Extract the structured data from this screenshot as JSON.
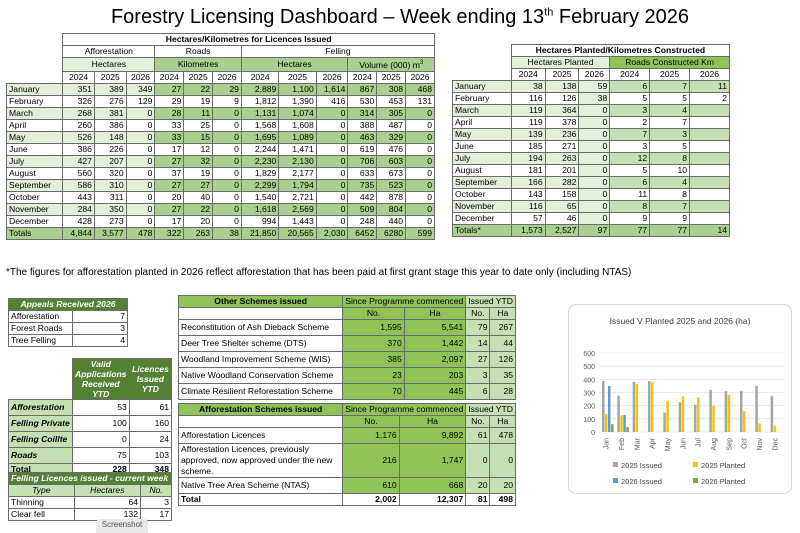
{
  "title": {
    "main": "Forestry Licensing Dashboard – Week ending 13",
    "sup": "th",
    "tail": " February 2026"
  },
  "licences": {
    "header": "Hectares/Kilometres for Licences Issued",
    "groups": {
      "afforestation": "Afforestation",
      "roads": "Roads",
      "felling": "Felling"
    },
    "units": {
      "aff": "Hectares",
      "roads": "Kilometres",
      "fell_ha": "Hectares",
      "fell_vol": "Volume (000) m",
      "fell_vol_sup": "3"
    },
    "years": [
      "2024",
      "2025",
      "2026"
    ],
    "rows": [
      {
        "month": "January",
        "v": [
          "351",
          "389",
          "349",
          "27",
          "22",
          "29",
          "2,889",
          "1,100",
          "1,614",
          "867",
          "308",
          "468"
        ]
      },
      {
        "month": "February",
        "v": [
          "326",
          "276",
          "129",
          "29",
          "19",
          "9",
          "1,812",
          "1,390",
          "416",
          "530",
          "453",
          "131"
        ]
      },
      {
        "month": "March",
        "v": [
          "268",
          "381",
          "0",
          "28",
          "11",
          "0",
          "1,131",
          "1,074",
          "0",
          "314",
          "305",
          "0"
        ]
      },
      {
        "month": "April",
        "v": [
          "260",
          "386",
          "0",
          "33",
          "25",
          "0",
          "1,568",
          "1,608",
          "0",
          "388",
          "487",
          "0"
        ]
      },
      {
        "month": "May",
        "v": [
          "526",
          "148",
          "0",
          "33",
          "15",
          "0",
          "1,695",
          "1,089",
          "0",
          "463",
          "329",
          "0"
        ]
      },
      {
        "month": "June",
        "v": [
          "386",
          "226",
          "0",
          "17",
          "12",
          "0",
          "2,244",
          "1,471",
          "0",
          "619",
          "476",
          "0"
        ]
      },
      {
        "month": "July",
        "v": [
          "427",
          "207",
          "0",
          "27",
          "32",
          "0",
          "2,230",
          "2,130",
          "0",
          "706",
          "603",
          "0"
        ]
      },
      {
        "month": "August",
        "v": [
          "560",
          "320",
          "0",
          "37",
          "19",
          "0",
          "1,829",
          "2,177",
          "0",
          "633",
          "673",
          "0"
        ]
      },
      {
        "month": "September",
        "v": [
          "586",
          "310",
          "0",
          "27",
          "27",
          "0",
          "2,299",
          "1,794",
          "0",
          "735",
          "523",
          "0"
        ]
      },
      {
        "month": "October",
        "v": [
          "443",
          "311",
          "0",
          "20",
          "40",
          "0",
          "1,540",
          "2,721",
          "0",
          "442",
          "878",
          "0"
        ]
      },
      {
        "month": "November",
        "v": [
          "284",
          "350",
          "0",
          "27",
          "22",
          "0",
          "1,618",
          "2,569",
          "0",
          "509",
          "804",
          "0"
        ]
      },
      {
        "month": "December",
        "v": [
          "428",
          "273",
          "0",
          "17",
          "20",
          "0",
          "994",
          "1,443",
          "0",
          "248",
          "440",
          "0"
        ]
      }
    ],
    "totals": {
      "label": "Totals",
      "v": [
        "4,844",
        "3,577",
        "478",
        "322",
        "263",
        "38",
        "21,850",
        "20,565",
        "2,030",
        "6452",
        "6280",
        "599"
      ]
    }
  },
  "planted": {
    "header": "Hectares Planted/Kilometres Constructed",
    "groups": {
      "planted": "Hectares Planted",
      "roads": "Roads Constructed Km"
    },
    "years": [
      "2024",
      "2025",
      "2026"
    ],
    "rows": [
      {
        "month": "January",
        "v": [
          "38",
          "138",
          "59",
          "6",
          "7",
          "11"
        ]
      },
      {
        "month": "February",
        "v": [
          "116",
          "126",
          "38",
          "5",
          "5",
          "2"
        ]
      },
      {
        "month": "March",
        "v": [
          "119",
          "364",
          "0",
          "3",
          "4",
          ""
        ]
      },
      {
        "month": "April",
        "v": [
          "119",
          "378",
          "0",
          "2",
          "7",
          ""
        ]
      },
      {
        "month": "May",
        "v": [
          "139",
          "236",
          "0",
          "7",
          "3",
          ""
        ]
      },
      {
        "month": "June",
        "v": [
          "185",
          "271",
          "0",
          "3",
          "5",
          ""
        ]
      },
      {
        "month": "July",
        "v": [
          "194",
          "263",
          "0",
          "12",
          "8",
          ""
        ]
      },
      {
        "month": "August",
        "v": [
          "181",
          "201",
          "0",
          "5",
          "10",
          ""
        ]
      },
      {
        "month": "September",
        "v": [
          "166",
          "282",
          "0",
          "6",
          "4",
          ""
        ]
      },
      {
        "month": "October",
        "v": [
          "143",
          "158",
          "0",
          "11",
          "8",
          ""
        ]
      },
      {
        "month": "November",
        "v": [
          "116",
          "65",
          "0",
          "8",
          "7",
          ""
        ]
      },
      {
        "month": "December",
        "v": [
          "57",
          "46",
          "0",
          "9",
          "9",
          ""
        ]
      }
    ],
    "totals": {
      "label": "Totals*",
      "v": [
        "1,573",
        "2,527",
        "97",
        "77",
        "77",
        "14"
      ]
    }
  },
  "note": "*The figures for afforestation planted in 2026 reflect afforestation that has been paid at first grant stage this year to date only (including NTAS)",
  "appeals": {
    "header": "Appeals Received 2026",
    "rows": [
      {
        "label": "Afforestation",
        "value": "7"
      },
      {
        "label": "Forest Roads",
        "value": "3"
      },
      {
        "label": "Tree Felling",
        "value": "4"
      }
    ]
  },
  "applications": {
    "col1": "Valid Applications Received YTD",
    "col2": "Licences Issued YTD",
    "rows": [
      {
        "label": "Afforestation",
        "a": "53",
        "b": "61"
      },
      {
        "label": "Felling Private",
        "a": "100",
        "b": "160"
      },
      {
        "label": "Felling Coillte",
        "a": "0",
        "b": "24"
      },
      {
        "label": "Roads",
        "a": "75",
        "b": "103"
      }
    ],
    "total": {
      "label": "Total",
      "a": "228",
      "b": "348"
    }
  },
  "felling_week": {
    "header": "Felling Licences issued - current week",
    "cols": [
      "Type",
      "Hectares",
      "No."
    ],
    "rows": [
      {
        "type": "Thinning",
        "ha": "64",
        "no": "3"
      },
      {
        "type": "Clear fell",
        "ha": "132",
        "no": "17"
      }
    ]
  },
  "other_schemes": {
    "header": "Other Schemes issued",
    "since": "Since Programme commenced",
    "ytd": "Issued YTD",
    "sub": [
      "No.",
      "Ha",
      "No.",
      "Ha"
    ],
    "rows": [
      {
        "name": "Reconstitution of Ash Dieback Scheme",
        "v": [
          "1,595",
          "5,541",
          "79",
          "267"
        ]
      },
      {
        "name": "Deer Tree Shelter scheme (DTS)",
        "v": [
          "370",
          "1,442",
          "14",
          "44"
        ]
      },
      {
        "name": "Woodland Improvement Scheme (WIS)",
        "v": [
          "385",
          "2,097",
          "27",
          "126"
        ]
      },
      {
        "name": "Native Woodland Conservation Scheme",
        "v": [
          "23",
          "203",
          "3",
          "35"
        ]
      },
      {
        "name": "Climate Resilient Reforestation Scheme",
        "v": [
          "70",
          "445",
          "6",
          "28"
        ]
      }
    ]
  },
  "aff_schemes": {
    "header": "Afforestation Schemes issued",
    "since": "Since Programme commenced",
    "ytd": "Issued YTD",
    "sub": [
      "No.",
      "Ha",
      "No.",
      "Ha"
    ],
    "rows": [
      {
        "name": "Afforestation Licences",
        "v": [
          "1,176",
          "9,892",
          "61",
          "478"
        ]
      },
      {
        "name": "Afforestation Licences, previously approved, now approved under the new scheme.",
        "v": [
          "216",
          "1,747",
          "0",
          "0"
        ]
      },
      {
        "name": "Native Tree Area Scheme (NTAS)",
        "v": [
          "610",
          "668",
          "20",
          "20"
        ]
      }
    ],
    "total": {
      "name": "Total",
      "v": [
        "2,002",
        "12,307",
        "81",
        "498"
      ]
    }
  },
  "chart_data": {
    "type": "bar",
    "title": "Issued V Planted 2025 and 2026 (ha)",
    "categories": [
      "Jan",
      "Feb",
      "Mar",
      "Apr",
      "May",
      "Jun",
      "Jul",
      "Aug",
      "Sep",
      "Oct",
      "Nov",
      "Dec"
    ],
    "series": [
      {
        "name": "2025 Issued",
        "color": "#a5a5a5",
        "values": [
          389,
          276,
          381,
          386,
          148,
          226,
          207,
          320,
          310,
          311,
          350,
          273
        ]
      },
      {
        "name": "2025 Planted",
        "color": "#ffc000",
        "values": [
          138,
          126,
          364,
          378,
          236,
          271,
          263,
          201,
          282,
          158,
          65,
          46
        ]
      },
      {
        "name": "2026 Issued",
        "color": "#5b9bd5",
        "values": [
          349,
          129,
          0,
          0,
          0,
          0,
          0,
          0,
          0,
          0,
          0,
          0
        ]
      },
      {
        "name": "2026 Planted",
        "color": "#70ad47",
        "values": [
          59,
          38,
          0,
          0,
          0,
          0,
          0,
          0,
          0,
          0,
          0,
          0
        ]
      }
    ],
    "yticks": [
      "0",
      "100",
      "200",
      "300",
      "400",
      "500",
      "600"
    ],
    "ylim": [
      0,
      600
    ],
    "grid": true,
    "legend_position": "bottom",
    "xlabel": "",
    "ylabel": ""
  },
  "screenshot_tab": "Screenshot"
}
